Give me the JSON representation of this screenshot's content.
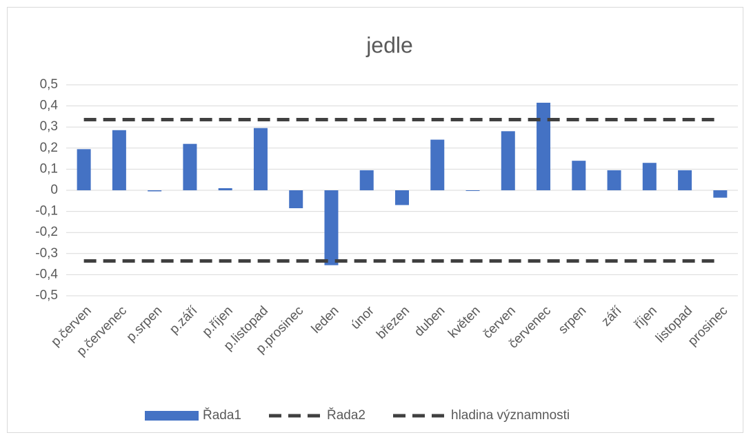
{
  "chart_data": {
    "type": "bar",
    "title": "jedle",
    "categories": [
      "p.červen",
      "p.červenec",
      "p.srpen",
      "p.září",
      "p.říjen",
      "p.listopad",
      "p.prosinec",
      "leden",
      "únor",
      "březen",
      "duben",
      "květen",
      "červen",
      "červenec",
      "srpen",
      "září",
      "říjen",
      "listopad",
      "prosinec"
    ],
    "series": [
      {
        "name": "Řada1",
        "type": "bar",
        "color": "#4472c4",
        "values": [
          0.195,
          0.285,
          -0.005,
          0.22,
          0.01,
          0.295,
          -0.085,
          -0.355,
          0.095,
          -0.07,
          0.24,
          -0.002,
          0.28,
          0.415,
          0.14,
          0.095,
          0.13,
          0.095,
          -0.035
        ]
      },
      {
        "name": "Řada2",
        "type": "line",
        "dashed": true,
        "color": "#404040",
        "values": [
          0.335,
          0.335,
          0.335,
          0.335,
          0.335,
          0.335,
          0.335,
          0.335,
          0.335,
          0.335,
          0.335,
          0.335,
          0.335,
          0.335,
          0.335,
          0.335,
          0.335,
          0.335,
          0.335
        ]
      },
      {
        "name": "hladina významnosti",
        "type": "line",
        "dashed": true,
        "color": "#404040",
        "values": [
          -0.335,
          -0.335,
          -0.335,
          -0.335,
          -0.335,
          -0.335,
          -0.335,
          -0.335,
          -0.335,
          -0.335,
          -0.335,
          -0.335,
          -0.335,
          -0.335,
          -0.335,
          -0.335,
          -0.335,
          -0.335,
          -0.335
        ]
      }
    ],
    "ylim": [
      -0.5,
      0.5
    ],
    "yticks": [
      {
        "value": -0.5,
        "label": "-0,5"
      },
      {
        "value": -0.4,
        "label": "-0,4"
      },
      {
        "value": -0.3,
        "label": "-0,3"
      },
      {
        "value": -0.2,
        "label": "-0,2"
      },
      {
        "value": -0.1,
        "label": "-0,1"
      },
      0,
      {
        "value": 0.1,
        "label": "0,1"
      },
      {
        "value": 0.2,
        "label": "0,2"
      },
      {
        "value": 0.3,
        "label": "0,3"
      },
      {
        "value": 0.4,
        "label": "0,4"
      },
      {
        "value": 0.5,
        "label": "0,5"
      }
    ],
    "grid": true,
    "legend": "bottom"
  }
}
